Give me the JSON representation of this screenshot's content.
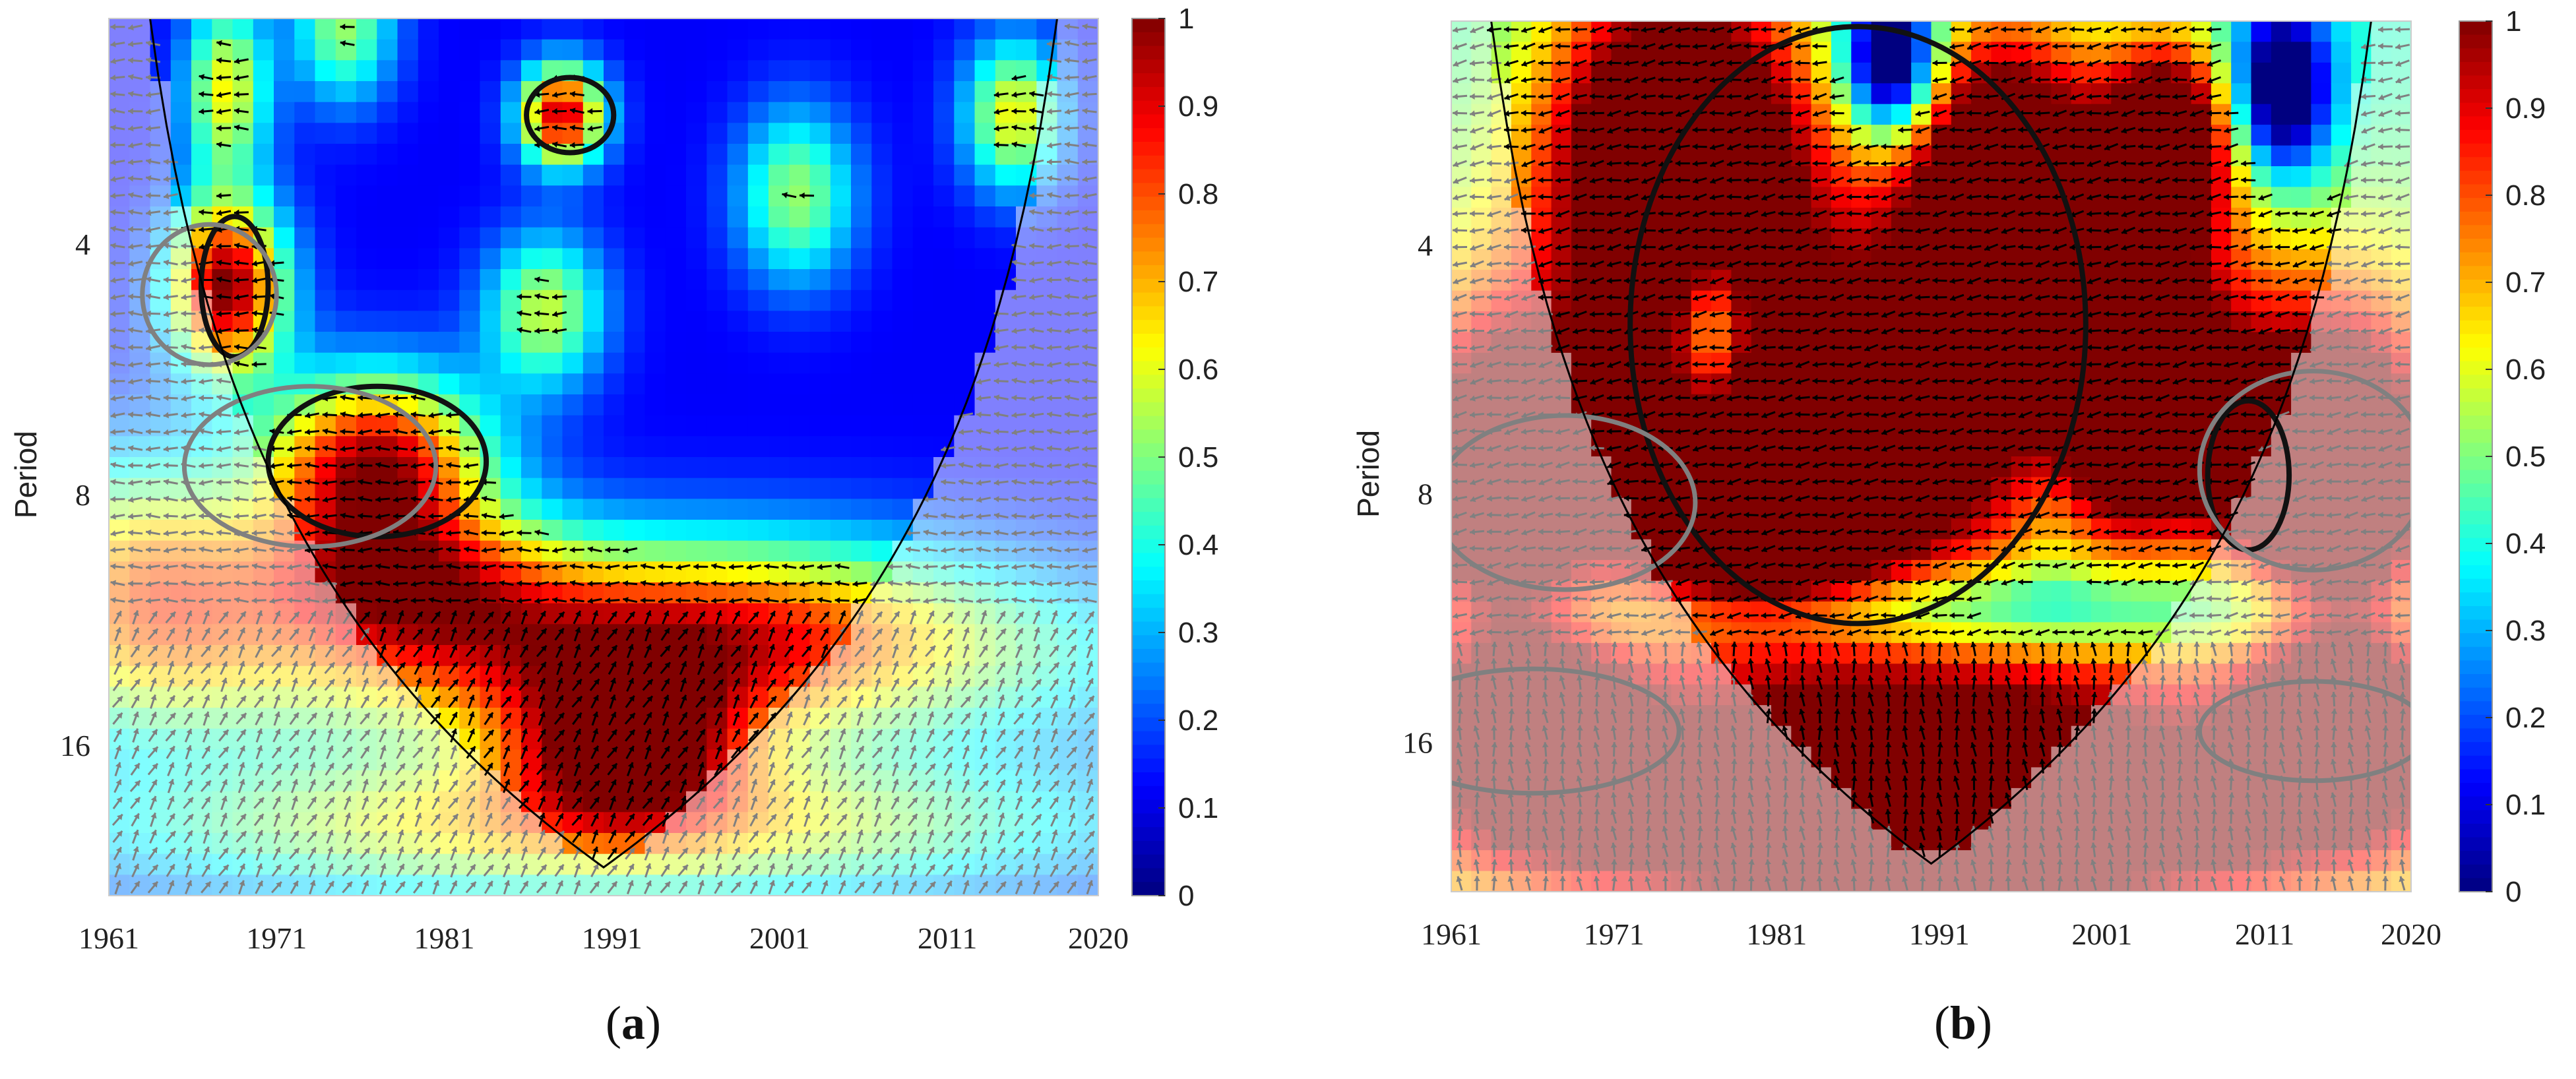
{
  "figure": {
    "captions": [
      {
        "open": "(",
        "letter": "a",
        "close": ")"
      },
      {
        "open": "(",
        "letter": "b",
        "close": ")"
      }
    ]
  },
  "chart_data": [
    {
      "type": "heatmap",
      "panel": "a",
      "ylabel": "Period",
      "xlabel": "",
      "title": "",
      "x_ticks": [
        "1961",
        "1971",
        "1981",
        "1991",
        "2001",
        "2011",
        "2020"
      ],
      "x_tick_values": [
        1961,
        1971,
        1981,
        1991,
        2001,
        2011,
        2020
      ],
      "y_ticks": [
        "4",
        "8",
        "16"
      ],
      "y_tick_values": [
        4,
        8,
        16
      ],
      "xlim": [
        1961,
        2020
      ],
      "ylim_period_log2": [
        1.1,
        4.6
      ],
      "y_scale": "log2",
      "y_inverted": true,
      "colorbar": {
        "min": 0,
        "max": 1,
        "ticks": [
          "0",
          "0.1",
          "0.2",
          "0.3",
          "0.4",
          "0.5",
          "0.6",
          "0.7",
          "0.8",
          "0.9",
          "1"
        ],
        "colormap": "jet"
      },
      "colors": {
        "cone_of_influence_line": "#000000",
        "significance_contour_inside": "#111111",
        "significance_contour_outside": "#808080",
        "arrow_inside": "#000000",
        "arrow_outside": "#808080"
      },
      "coherence_blobs": [
        {
          "year": 1963,
          "period": 10,
          "coherence": 0.55,
          "sx": 8,
          "sy": 0.5
        },
        {
          "year": 1968,
          "period": 4.5,
          "coherence": 0.88,
          "sx": 3.5,
          "sy": 0.35
        },
        {
          "year": 1977,
          "period": 7.3,
          "coherence": 0.82,
          "sx": 6.5,
          "sy": 0.35
        },
        {
          "year": 1978,
          "period": 10,
          "coherence": 0.55,
          "sx": 9,
          "sy": 0.3
        },
        {
          "year": 1988,
          "period": 2.8,
          "coherence": 0.82,
          "sx": 2.5,
          "sy": 0.2
        },
        {
          "year": 1992,
          "period": 16,
          "coherence": 0.68,
          "sx": 7,
          "sy": 0.3
        },
        {
          "year": 1968,
          "period": 2.6,
          "coherence": 0.5,
          "sx": 2.5,
          "sy": 0.35
        },
        {
          "year": 1975,
          "period": 2.2,
          "coherence": 0.4,
          "sx": 3,
          "sy": 0.3
        },
        {
          "year": 1987,
          "period": 4.8,
          "coherence": 0.45,
          "sx": 3.5,
          "sy": 0.3
        },
        {
          "year": 2002,
          "period": 3.5,
          "coherence": 0.4,
          "sx": 3.5,
          "sy": 0.35
        },
        {
          "year": 2015,
          "period": 2.8,
          "coherence": 0.5,
          "sx": 3,
          "sy": 0.3
        },
        {
          "year": 1997,
          "period": 11,
          "coherence": 0.45,
          "sx": 18,
          "sy": 0.35
        },
        {
          "year": 1990,
          "period": 13,
          "coherence": 0.5,
          "sx": 30,
          "sy": 0.35
        },
        {
          "year": 1990,
          "period": 20,
          "coherence": 0.55,
          "sx": 30,
          "sy": 0.3
        }
      ],
      "base_coherence": 0.12,
      "significant_regions": [
        {
          "year": 1968.5,
          "period": 4.5,
          "ry_years": 2.0,
          "rlog": 0.28,
          "inside": true
        },
        {
          "year": 1977,
          "period": 7.3,
          "ry_years": 6.5,
          "rlog": 0.3,
          "inside": true
        },
        {
          "year": 1988.5,
          "period": 2.8,
          "ry_years": 2.6,
          "rlog": 0.15,
          "inside": true
        },
        {
          "year": 1967,
          "period": 4.6,
          "ry_years": 4.0,
          "rlog": 0.28,
          "inside": false
        },
        {
          "year": 1973,
          "period": 7.4,
          "ry_years": 7.5,
          "rlog": 0.32,
          "inside": false
        }
      ],
      "phase_angle_deg": [
        {
          "year_from": 1961,
          "year_to": 1990,
          "period_from": 1.1,
          "period_to": 11,
          "angle": 180
        },
        {
          "year_from": 1961,
          "year_to": 2020,
          "period_from": 11,
          "period_to": 24,
          "angle": 60
        }
      ]
    },
    {
      "type": "heatmap",
      "panel": "b",
      "ylabel": "Period",
      "xlabel": "",
      "title": "",
      "x_ticks": [
        "1961",
        "1971",
        "1981",
        "1991",
        "2001",
        "2011",
        "2020"
      ],
      "x_tick_values": [
        1961,
        1971,
        1981,
        1991,
        2001,
        2011,
        2020
      ],
      "y_ticks": [
        "4",
        "8",
        "16"
      ],
      "y_tick_values": [
        4,
        8,
        16
      ],
      "xlim": [
        1961,
        2020
      ],
      "ylim_period_log2": [
        1.1,
        4.6
      ],
      "y_scale": "log2",
      "y_inverted": true,
      "colorbar": {
        "min": 0,
        "max": 1,
        "ticks": [
          "0",
          "0.1",
          "0.2",
          "0.3",
          "0.4",
          "0.5",
          "0.6",
          "0.7",
          "0.8",
          "0.9",
          "1"
        ],
        "colormap": "jet"
      },
      "colors": {
        "cone_of_influence_line": "#000000",
        "significance_contour_inside": "#111111",
        "significance_contour_outside": "#808080",
        "arrow_inside": "#000000",
        "arrow_outside": "#808080"
      },
      "coherence_blobs": [
        {
          "year": 1975,
          "period": 3,
          "coherence": 0.95,
          "sx": 8,
          "sy": 0.7
        },
        {
          "year": 1980,
          "period": 8.5,
          "coherence": 0.92,
          "sx": 9,
          "sy": 0.4
        },
        {
          "year": 1995,
          "period": 3.3,
          "coherence": 0.85,
          "sx": 6,
          "sy": 0.6
        },
        {
          "year": 2005,
          "period": 3,
          "coherence": 0.82,
          "sx": 4,
          "sy": 0.4
        },
        {
          "year": 2003,
          "period": 6,
          "coherence": 0.72,
          "sx": 5,
          "sy": 0.45
        },
        {
          "year": 2012,
          "period": 7.3,
          "coherence": 0.76,
          "sx": 4,
          "sy": 0.3
        },
        {
          "year": 1964,
          "period": 8,
          "coherence": 0.75,
          "sx": 5,
          "sy": 0.6
        },
        {
          "year": 2016,
          "period": 8,
          "coherence": 0.75,
          "sx": 5,
          "sy": 0.6
        },
        {
          "year": 1966,
          "period": 15.5,
          "coherence": 0.76,
          "sx": 6,
          "sy": 0.35
        },
        {
          "year": 2016,
          "period": 15.5,
          "coherence": 0.76,
          "sx": 6,
          "sy": 0.35
        },
        {
          "year": 1990,
          "period": 16,
          "coherence": 0.62,
          "sx": 25,
          "sy": 0.45
        },
        {
          "year": 1991,
          "period": 6,
          "coherence": 0.65,
          "sx": 30,
          "sy": 0.8
        },
        {
          "year": 1990,
          "period": 21,
          "coherence": 0.7,
          "sx": 30,
          "sy": 0.35
        },
        {
          "year": 1977,
          "period": 5,
          "coherence": -0.45,
          "sx": 2.3,
          "sy": 0.35
        },
        {
          "year": 1988,
          "period": 2.4,
          "coherence": -0.75,
          "sx": 2.8,
          "sy": 0.3
        },
        {
          "year": 2012,
          "period": 2.6,
          "coherence": -0.65,
          "sx": 3,
          "sy": 0.35
        },
        {
          "year": 1998,
          "period": 7.8,
          "coherence": -0.2,
          "sx": 3,
          "sy": 0.4
        },
        {
          "year": 1992,
          "period": 11,
          "coherence": -0.3,
          "sx": 25,
          "sy": 0.18
        }
      ],
      "base_coherence": 0.42,
      "significant_regions": [
        {
          "year": 1986,
          "period": 5,
          "ry_years": 14,
          "rlog": 1.2,
          "inside": true
        },
        {
          "year": 2010,
          "period": 7.6,
          "ry_years": 2.5,
          "rlog": 0.3,
          "inside": true
        },
        {
          "year": 1968,
          "period": 8.2,
          "ry_years": 8,
          "rlog": 0.35,
          "inside": false
        },
        {
          "year": 2014,
          "period": 7.5,
          "ry_years": 7,
          "rlog": 0.4,
          "inside": false
        },
        {
          "year": 1966,
          "period": 15.5,
          "ry_years": 9,
          "rlog": 0.25,
          "inside": false
        },
        {
          "year": 2014,
          "period": 15.5,
          "ry_years": 7,
          "rlog": 0.2,
          "inside": false
        }
      ],
      "phase_angle_deg": [
        {
          "year_from": 1961,
          "year_to": 2020,
          "period_from": 1.1,
          "period_to": 12,
          "angle": 190
        },
        {
          "year_from": 1961,
          "year_to": 2020,
          "period_from": 12,
          "period_to": 24,
          "angle": 95
        }
      ]
    }
  ]
}
